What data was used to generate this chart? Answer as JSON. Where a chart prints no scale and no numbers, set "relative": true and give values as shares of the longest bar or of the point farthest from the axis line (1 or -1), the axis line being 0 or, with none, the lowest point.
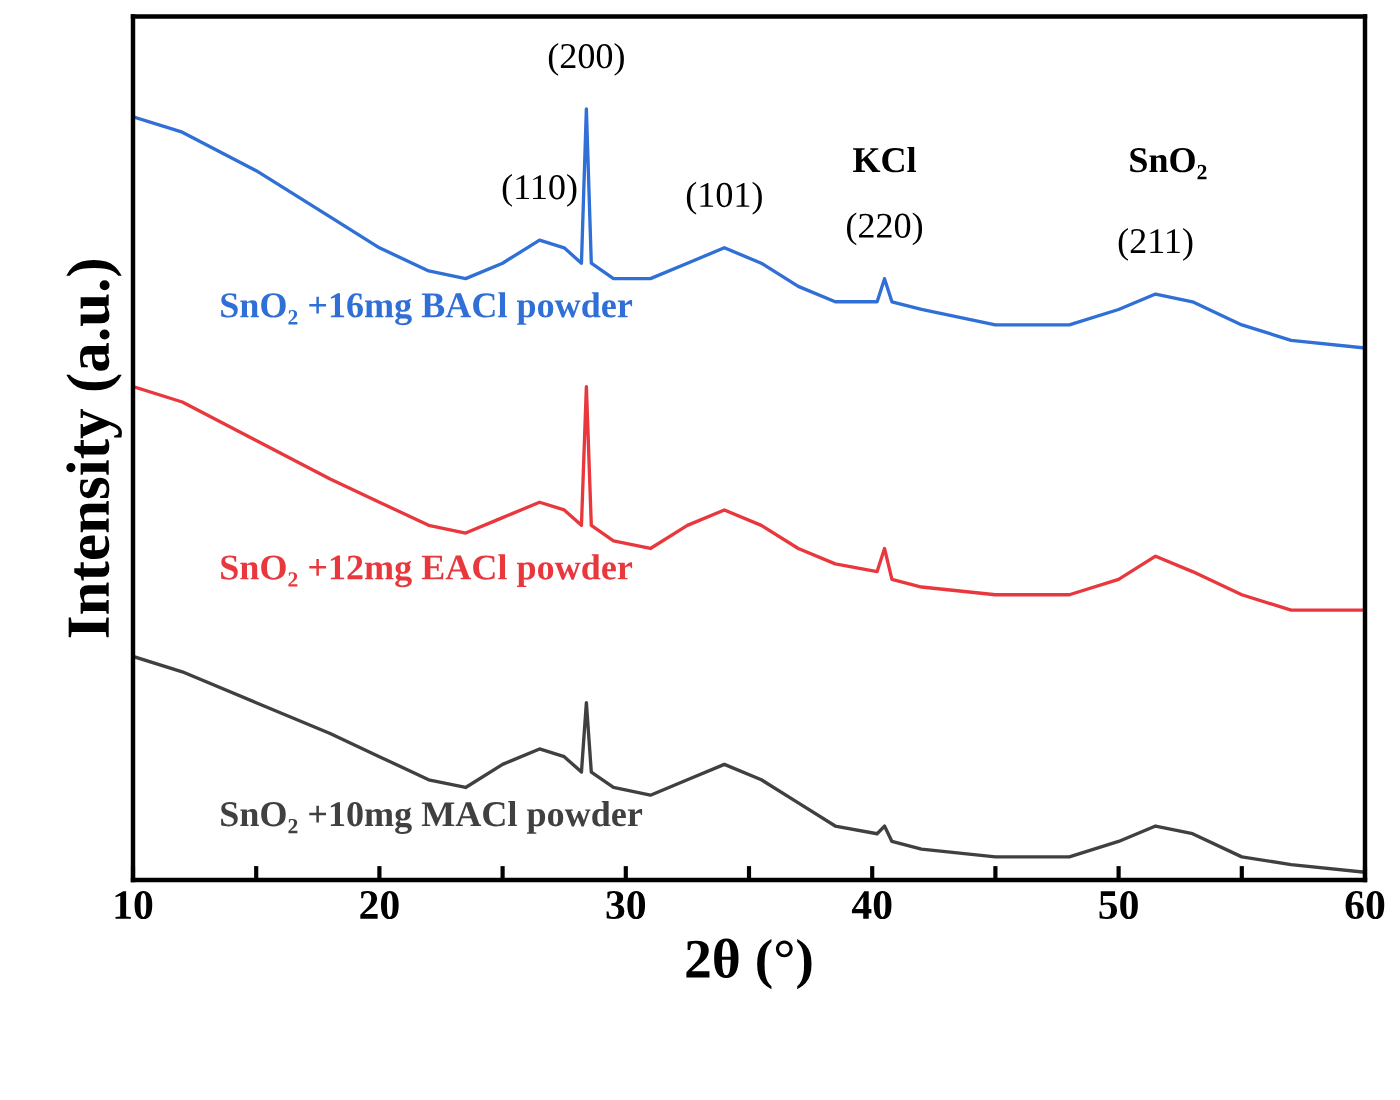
{
  "chart_data": {
    "type": "line",
    "relative": true,
    "xlabel": "2θ (°)",
    "ylabel": "Intensity (a.u.)",
    "x": [
      10,
      12,
      15,
      18,
      20,
      22,
      23.5,
      25,
      26.5,
      27.5,
      28.2,
      28.4,
      28.6,
      29.5,
      31,
      32.5,
      34,
      35.5,
      37,
      38.5,
      40.2,
      40.5,
      40.8,
      42,
      45,
      48,
      50,
      51.5,
      53,
      55,
      57,
      60
    ],
    "series": [
      {
        "name": "SnO₂ +16mg BACl powder",
        "color": "#2f6fd6",
        "values": [
          0.99,
          0.97,
          0.92,
          0.86,
          0.82,
          0.79,
          0.78,
          0.8,
          0.83,
          0.82,
          0.8,
          1.0,
          0.8,
          0.78,
          0.78,
          0.8,
          0.82,
          0.8,
          0.77,
          0.75,
          0.75,
          0.78,
          0.75,
          0.74,
          0.72,
          0.72,
          0.74,
          0.76,
          0.75,
          0.72,
          0.7,
          0.69
        ]
      },
      {
        "name": "SnO₂ +12mg EACl powder",
        "color": "#e8383d",
        "values": [
          0.64,
          0.62,
          0.57,
          0.52,
          0.49,
          0.46,
          0.45,
          0.47,
          0.49,
          0.48,
          0.46,
          0.64,
          0.46,
          0.44,
          0.43,
          0.46,
          0.48,
          0.46,
          0.43,
          0.41,
          0.4,
          0.43,
          0.39,
          0.38,
          0.37,
          0.37,
          0.39,
          0.42,
          0.4,
          0.37,
          0.35,
          0.35
        ]
      },
      {
        "name": "SnO₂ +10mg MACl powder",
        "color": "#404040",
        "values": [
          0.29,
          0.27,
          0.23,
          0.19,
          0.16,
          0.13,
          0.12,
          0.15,
          0.17,
          0.16,
          0.14,
          0.23,
          0.14,
          0.12,
          0.11,
          0.13,
          0.15,
          0.13,
          0.1,
          0.07,
          0.06,
          0.07,
          0.05,
          0.04,
          0.03,
          0.03,
          0.05,
          0.07,
          0.06,
          0.03,
          0.02,
          0.01
        ]
      }
    ],
    "annotations": [
      {
        "text": "(110)",
        "x": 26.5,
        "y": 0.83
      },
      {
        "text": "(200)",
        "x": 28.4,
        "y": 1.0
      },
      {
        "text": "(101)",
        "x": 34,
        "y": 0.82
      },
      {
        "text": "(220)",
        "x": 40.5,
        "y": 0.78
      },
      {
        "text": "(211)",
        "x": 51.5,
        "y": 0.76
      },
      "KCl",
      "SnO₂"
    ],
    "xlim": [
      10,
      60
    ],
    "xticks": [
      10,
      {
        "value": 15,
        "label": null
      },
      20,
      {
        "value": 25,
        "label": null
      },
      30,
      {
        "value": 35,
        "label": null
      },
      40,
      {
        "value": 45,
        "label": null
      },
      50,
      {
        "value": 55,
        "label": null
      },
      60
    ],
    "tick_labels": "x",
    "legend": false,
    "grid": false,
    "marker": "none",
    "line_style": "solid"
  }
}
